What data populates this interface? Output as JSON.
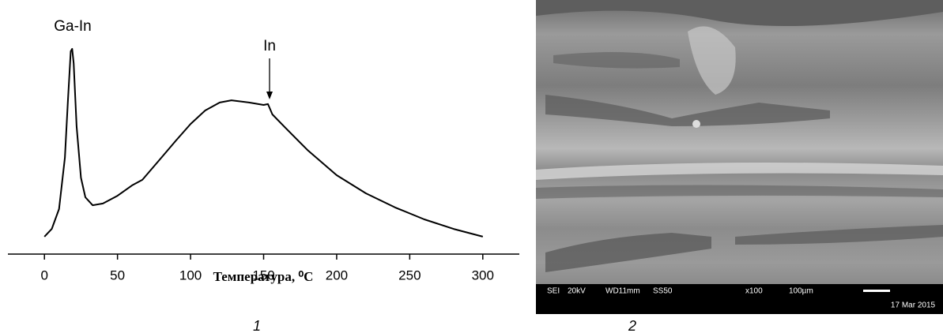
{
  "chart_data": {
    "type": "line",
    "xlabel": "Температура, ⁰C",
    "annotations": [
      "Ga-In",
      "In"
    ],
    "x": [
      0,
      5,
      10,
      14,
      16,
      18,
      19,
      20,
      22,
      25,
      28,
      33,
      40,
      50,
      60,
      67,
      80,
      90,
      100,
      110,
      120,
      128,
      140,
      150,
      153,
      156,
      165,
      180,
      200,
      220,
      240,
      260,
      280,
      300
    ],
    "values": [
      7.9,
      11.4,
      20.4,
      43.6,
      68.6,
      91.8,
      92.9,
      86.4,
      57.9,
      34.6,
      25.7,
      22.1,
      22.9,
      26.4,
      31.1,
      33.6,
      43.6,
      51.4,
      58.9,
      65,
      68.6,
      69.6,
      68.6,
      67.5,
      67.9,
      63.2,
      57.1,
      47.1,
      35.7,
      27.5,
      21.1,
      15.7,
      11.4,
      7.9
    ],
    "color": "#000000",
    "xlim": [
      -25,
      325
    ],
    "ylim": [
      0,
      100
    ],
    "xticks": [
      0,
      50,
      100,
      150,
      200,
      250,
      300
    ]
  },
  "sem": {
    "labels": [
      "SEI",
      "20kV",
      "WD11mm",
      "SS50",
      "x100",
      "100µm",
      "17 Mar 2015"
    ]
  },
  "captions": [
    "1",
    "2"
  ]
}
